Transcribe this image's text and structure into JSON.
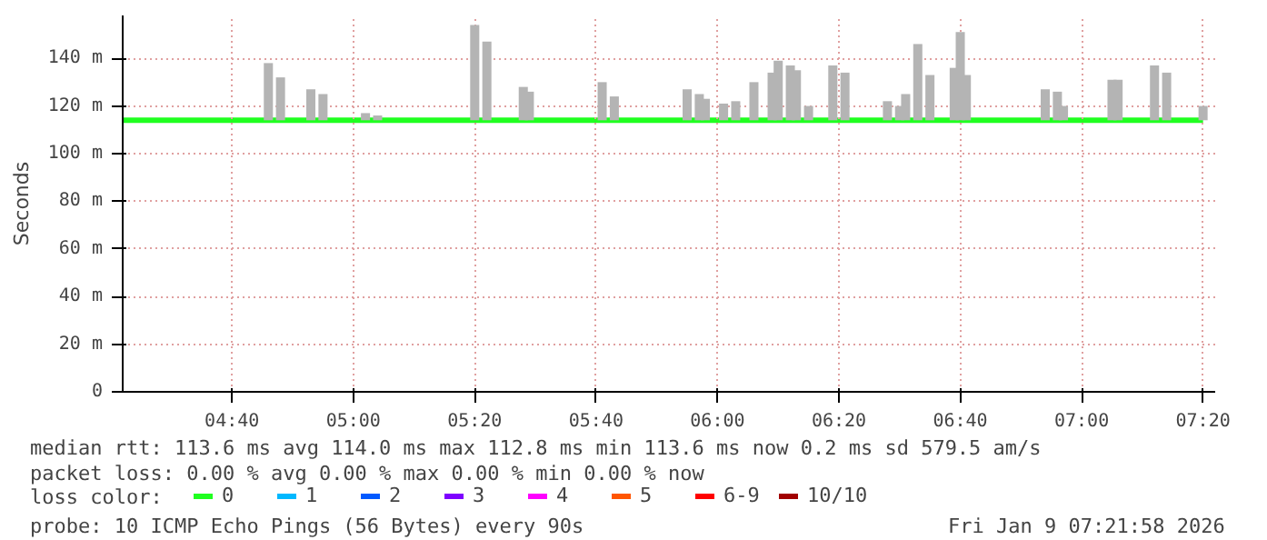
{
  "chart_data": {
    "type": "line",
    "ylabel": "Seconds",
    "legend_title": "loss color:",
    "legend": "bottom",
    "grid": true,
    "xlim": [
      "2026-01-09T04:22",
      "2026-01-09T07:22"
    ],
    "xticks": [
      {
        "value": "2026-01-09T04:40",
        "label": "04:40"
      },
      {
        "value": "2026-01-09T05:00",
        "label": "05:00"
      },
      {
        "value": "2026-01-09T05:20",
        "label": "05:20"
      },
      {
        "value": "2026-01-09T05:40",
        "label": "05:40"
      },
      {
        "value": "2026-01-09T06:00",
        "label": "06:00"
      },
      {
        "value": "2026-01-09T06:20",
        "label": "06:20"
      },
      {
        "value": "2026-01-09T06:40",
        "label": "06:40"
      },
      {
        "value": "2026-01-09T07:00",
        "label": "07:00"
      },
      {
        "value": "2026-01-09T07:20",
        "label": "07:20"
      }
    ],
    "ylim": [
      0,
      158
    ],
    "yticks": [
      0,
      {
        "value": 20,
        "label": "20 m"
      },
      {
        "value": 40,
        "label": "40 m"
      },
      {
        "value": 60,
        "label": "60 m"
      },
      {
        "value": 80,
        "label": "80 m"
      },
      {
        "value": 100,
        "label": "100 m"
      },
      {
        "value": 120,
        "label": "120 m"
      },
      {
        "value": 140,
        "label": "140 m"
      }
    ],
    "series": [
      {
        "type": "bar",
        "color": "#b4b4b4",
        "x": [
          "2026-01-09T04:46",
          "2026-01-09T04:48",
          "2026-01-09T04:53",
          "2026-01-09T04:55",
          "2026-01-09T05:02",
          "2026-01-09T05:04",
          "2026-01-09T05:20",
          "2026-01-09T05:22",
          "2026-01-09T05:28",
          "2026-01-09T05:29",
          "2026-01-09T05:41",
          "2026-01-09T05:43",
          "2026-01-09T05:55",
          "2026-01-09T05:57",
          "2026-01-09T05:58",
          "2026-01-09T06:01",
          "2026-01-09T06:03",
          "2026-01-09T06:06",
          "2026-01-09T06:09",
          "2026-01-09T06:10",
          "2026-01-09T06:12",
          "2026-01-09T06:13",
          "2026-01-09T06:15",
          "2026-01-09T06:19",
          "2026-01-09T06:21",
          "2026-01-09T06:28",
          "2026-01-09T06:30",
          "2026-01-09T06:31",
          "2026-01-09T06:33",
          "2026-01-09T06:35",
          "2026-01-09T06:39",
          "2026-01-09T06:40",
          "2026-01-09T06:41",
          "2026-01-09T06:54",
          "2026-01-09T06:56",
          "2026-01-09T06:57",
          "2026-01-09T07:05",
          "2026-01-09T07:06",
          "2026-01-09T07:12",
          "2026-01-09T07:14",
          "2026-01-09T07:20"
        ],
        "base": [
          114,
          114,
          114,
          114,
          114,
          114,
          114,
          114,
          114,
          114,
          114,
          114,
          114,
          114,
          114,
          114,
          114,
          114,
          114,
          114,
          114,
          114,
          114,
          114,
          114,
          114,
          114,
          114,
          114,
          114,
          114,
          114,
          114,
          114,
          114,
          114,
          114,
          114,
          114,
          114,
          114
        ],
        "values": [
          24,
          18,
          13,
          11,
          3,
          2,
          40,
          33,
          14,
          12,
          16,
          10,
          13,
          11,
          9,
          7,
          8,
          16,
          20,
          25,
          23,
          21,
          6,
          23,
          20,
          8,
          6,
          11,
          32,
          19,
          22,
          37,
          19,
          13,
          12,
          6,
          17,
          17,
          23,
          20,
          6
        ]
      },
      {
        "name": "0",
        "color": "#20ff20",
        "x": [
          "2026-01-09T04:22",
          "2026-01-09T05:00",
          "2026-01-09T05:40",
          "2026-01-09T06:20",
          "2026-01-09T07:00",
          "2026-01-09T07:20"
        ],
        "values": [
          114,
          114,
          114,
          114,
          114,
          114
        ]
      },
      {
        "name": "1",
        "color": "#00b8ff",
        "values": [
          null
        ]
      },
      {
        "name": "2",
        "color": "#0059ff",
        "values": [
          null
        ]
      },
      {
        "name": "3",
        "color": "#7e00ff",
        "values": [
          null
        ]
      },
      {
        "name": "4",
        "color": "#ff00ff",
        "values": [
          null
        ]
      },
      {
        "name": "5",
        "color": "#ff5500",
        "values": [
          null
        ]
      },
      {
        "name": "6-9",
        "color": "#ff0000",
        "values": [
          null
        ]
      },
      {
        "name": "10/10",
        "color": "#a10000",
        "values": [
          null
        ]
      }
    ],
    "annotations": [
      "median rtt:  113.6 ms avg  114.0 ms max  112.8 ms min  113.6 ms now  0.2 ms sd  579.5   am/s",
      "packet loss: 0.00 % avg  0.00 % max  0.00 % min  0.00 % now",
      "probe:       10 ICMP Echo Pings (56 Bytes) every 90s",
      "Fri Jan  9 07:21:58 2026"
    ]
  }
}
